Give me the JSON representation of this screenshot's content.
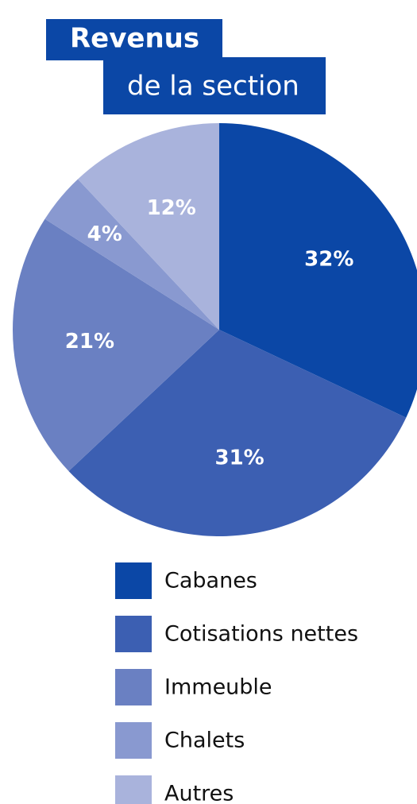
{
  "chart_data": {
    "type": "pie",
    "title": "Revenus",
    "subtitle": "de la section",
    "categories": [
      "Cabanes",
      "Cotisations nettes",
      "Immeuble",
      "Chalets",
      "Autres"
    ],
    "values": [
      32,
      31,
      21,
      4,
      12
    ],
    "value_labels": [
      "32%",
      "31%",
      "21%",
      "4%",
      "12%"
    ],
    "colors": [
      "#0b47a6",
      "#3c5fb2",
      "#6a80c2",
      "#8999d0",
      "#a9b3dc"
    ]
  }
}
